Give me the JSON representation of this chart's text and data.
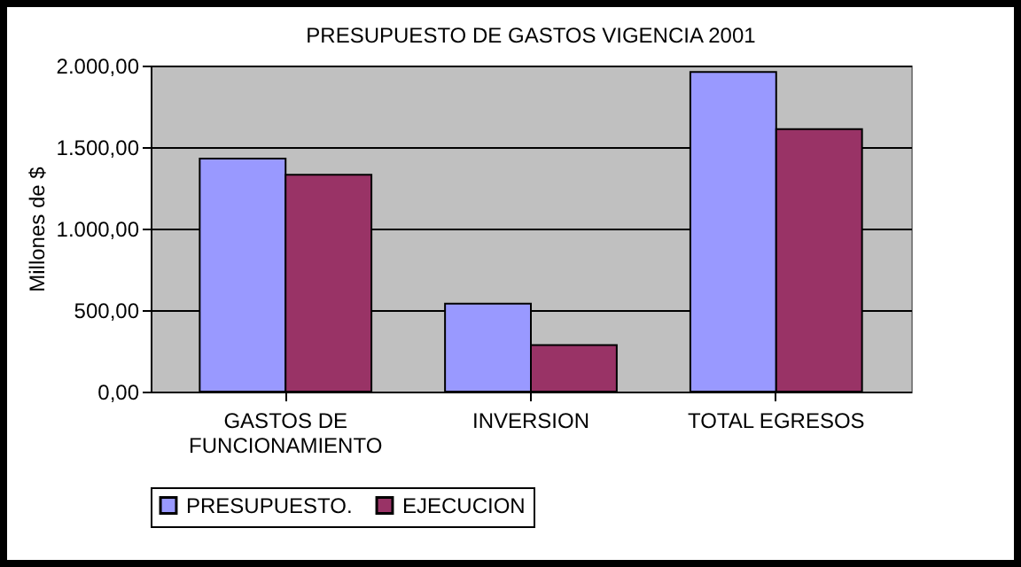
{
  "chart_data": {
    "type": "bar",
    "title": "PRESUPUESTO DE GASTOS VIGENCIA 2001",
    "ylabel": "Millones de $",
    "categories": [
      "GASTOS DE FUNCIONAMIENTO",
      "INVERSION",
      "TOTAL EGRESOS"
    ],
    "series": [
      {
        "name": "PRESUPUESTO.",
        "color": "#9999ff",
        "values": [
          1430,
          540,
          1960
        ]
      },
      {
        "name": "EJECUCION",
        "color": "#993366",
        "values": [
          1330,
          285,
          1610
        ]
      }
    ],
    "ylim": [
      0,
      2000
    ],
    "yticks": [
      {
        "value": 0,
        "label": "0,00"
      },
      {
        "value": 500,
        "label": "500,00"
      },
      {
        "value": 1000,
        "label": "1.000,00"
      },
      {
        "value": 1500,
        "label": "1.500,00"
      },
      {
        "value": 2000,
        "label": "2.000,00"
      }
    ],
    "grid": "y",
    "legend": "bottom"
  }
}
